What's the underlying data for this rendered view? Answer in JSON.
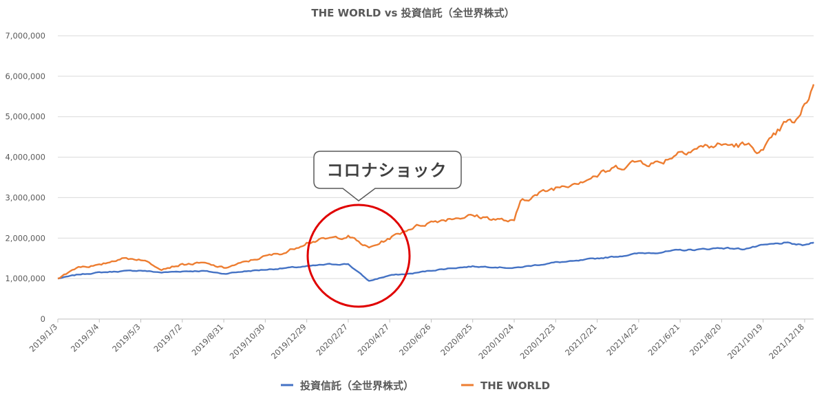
{
  "chart_data": {
    "type": "line",
    "title": "THE WORLD vs 投資信託（全世界株式）",
    "xlabel": "",
    "ylabel": "",
    "ylim": [
      0,
      7000000
    ],
    "y_ticks": [
      "0",
      "1,000,000",
      "2,000,000",
      "3,000,000",
      "4,000,000",
      "5,000,000",
      "6,000,000",
      "7,000,000"
    ],
    "x_ticks": [
      "2019/1/3",
      "2019/3/4",
      "2019/5/3",
      "2019/7/2",
      "2019/8/31",
      "2019/10/30",
      "2019/12/29",
      "2020/2/27",
      "2020/4/27",
      "2020/6/26",
      "2020/8/25",
      "2020/10/24",
      "2020/12/23",
      "2021/2/21",
      "2021/4/22",
      "2021/6/21",
      "2021/8/20",
      "2021/10/19",
      "2021/12/18"
    ],
    "grid": true,
    "legend_position": "bottom",
    "series": [
      {
        "name": "投資信託（全世界株式）",
        "color": "#4472C4",
        "x": [
          "2019/1/3",
          "2019/2/2",
          "2019/3/4",
          "2019/4/3",
          "2019/5/3",
          "2019/6/2",
          "2019/7/2",
          "2019/8/1",
          "2019/8/31",
          "2019/9/30",
          "2019/10/30",
          "2019/11/29",
          "2019/12/29",
          "2020/1/28",
          "2020/2/27",
          "2020/3/13",
          "2020/3/28",
          "2020/4/27",
          "2020/5/27",
          "2020/6/26",
          "2020/7/26",
          "2020/8/25",
          "2020/9/24",
          "2020/10/24",
          "2020/11/23",
          "2020/12/23",
          "2021/1/22",
          "2021/2/21",
          "2021/3/23",
          "2021/4/22",
          "2021/5/22",
          "2021/6/21",
          "2021/7/21",
          "2021/8/20",
          "2021/9/19",
          "2021/10/19",
          "2021/11/18",
          "2021/12/18",
          "2021/12/31"
        ],
        "values": [
          1000000,
          1100000,
          1150000,
          1180000,
          1200000,
          1150000,
          1180000,
          1190000,
          1120000,
          1180000,
          1220000,
          1260000,
          1300000,
          1350000,
          1360000,
          1150000,
          940000,
          1080000,
          1120000,
          1200000,
          1260000,
          1300000,
          1290000,
          1260000,
          1330000,
          1400000,
          1430000,
          1500000,
          1550000,
          1620000,
          1650000,
          1700000,
          1720000,
          1760000,
          1730000,
          1820000,
          1880000,
          1820000,
          1900000
        ]
      },
      {
        "name": "THE WORLD",
        "color": "#ED7D31",
        "x": [
          "2019/1/3",
          "2019/2/2",
          "2019/3/4",
          "2019/4/3",
          "2019/5/3",
          "2019/6/2",
          "2019/7/2",
          "2019/8/1",
          "2019/8/31",
          "2019/9/30",
          "2019/10/30",
          "2019/11/29",
          "2019/12/29",
          "2020/1/28",
          "2020/2/27",
          "2020/3/13",
          "2020/3/28",
          "2020/4/27",
          "2020/5/27",
          "2020/6/26",
          "2020/7/26",
          "2020/8/25",
          "2020/9/24",
          "2020/10/24",
          "2020/11/3",
          "2020/11/23",
          "2020/12/23",
          "2021/1/22",
          "2021/2/21",
          "2021/3/23",
          "2021/4/22",
          "2021/5/22",
          "2021/6/21",
          "2021/7/21",
          "2021/8/20",
          "2021/9/19",
          "2021/10/19",
          "2021/11/18",
          "2021/12/8",
          "2021/12/18",
          "2021/12/31"
        ],
        "values": [
          1000000,
          1300000,
          1320000,
          1500000,
          1480000,
          1250000,
          1350000,
          1380000,
          1260000,
          1400000,
          1550000,
          1650000,
          1900000,
          1980000,
          2050000,
          1900000,
          1750000,
          2000000,
          2250000,
          2400000,
          2500000,
          2550000,
          2480000,
          2400000,
          2950000,
          3050000,
          3250000,
          3400000,
          3550000,
          3750000,
          3900000,
          3850000,
          4150000,
          4250000,
          4300000,
          4300000,
          4150000,
          4800000,
          4900000,
          5250000,
          5800000
        ]
      }
    ],
    "annotation": {
      "text": "コロナショック"
    }
  }
}
